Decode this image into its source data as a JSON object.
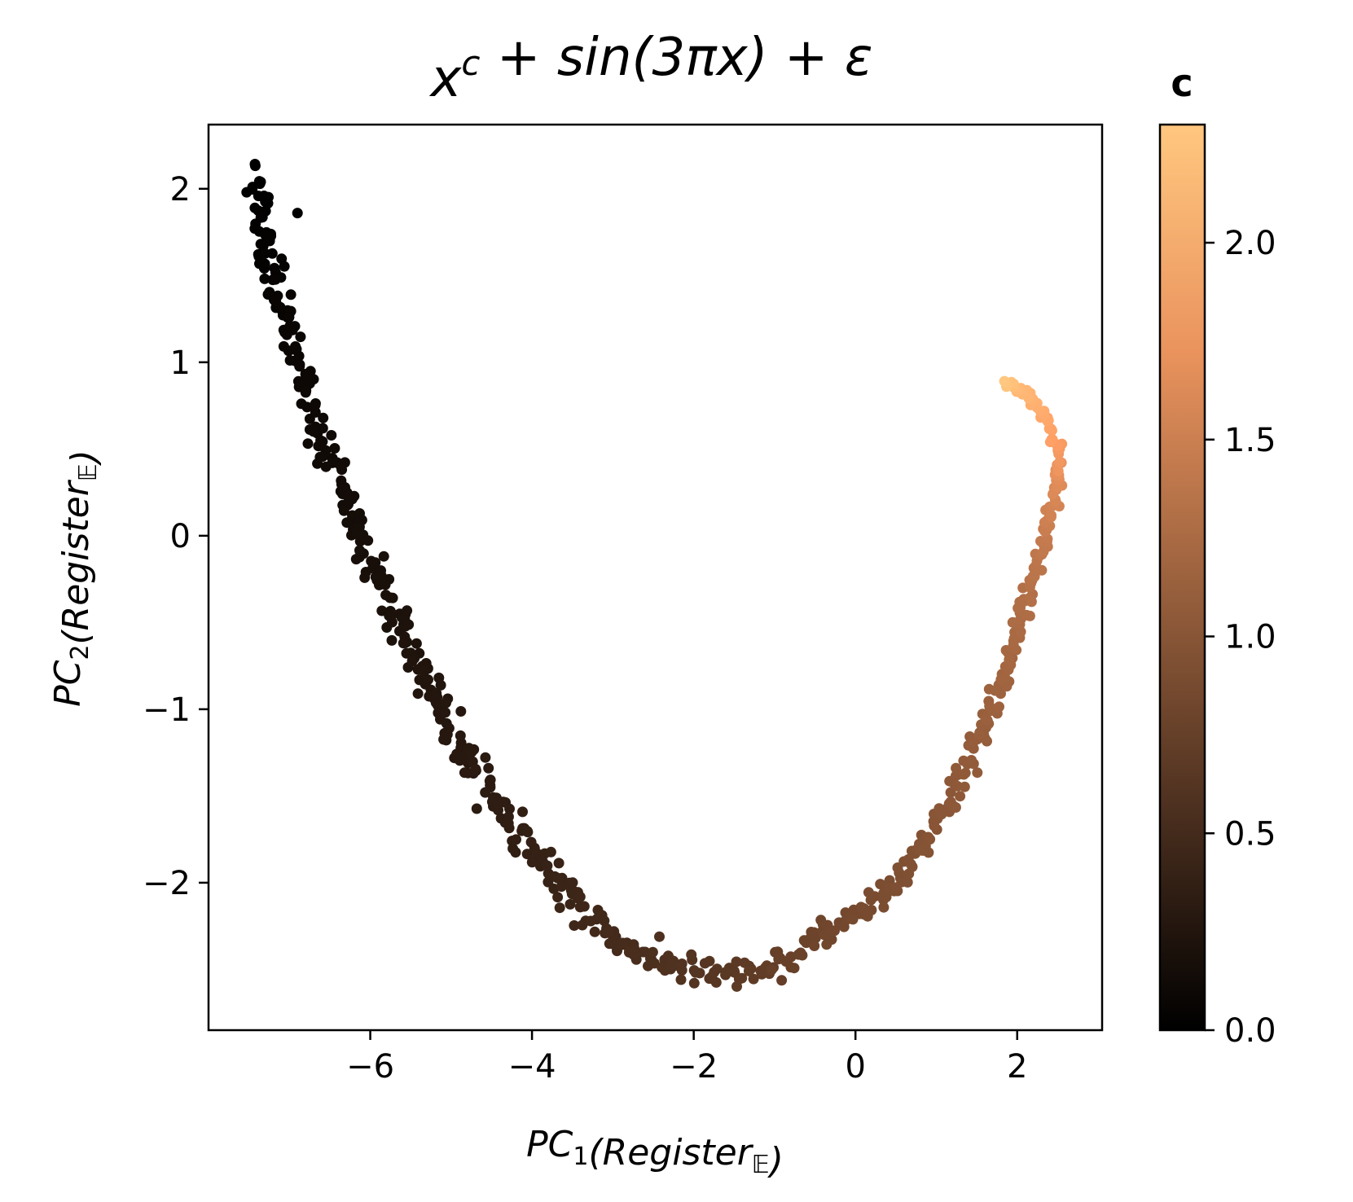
{
  "chart_data": {
    "type": "scatter",
    "title": "x^c + sin(3πx) + ε",
    "xlabel": "PC_1(Register_E)",
    "ylabel": "PC_2(Register_E)",
    "xlim": [
      -8.0,
      3.05
    ],
    "ylim": [
      -2.85,
      2.37
    ],
    "xticks": [
      -6,
      -4,
      -2,
      0,
      2
    ],
    "yticks": [
      -2,
      -1,
      0,
      1,
      2
    ],
    "xtick_labels": [
      "−6",
      "−4",
      "−2",
      "0",
      "2"
    ],
    "ytick_labels": [
      "−2",
      "−1",
      "0",
      "1",
      "2"
    ],
    "grid": false,
    "colormap": "copper",
    "colorbar": {
      "title": "c",
      "range": [
        0.0,
        2.3
      ],
      "ticks": [
        0.0,
        0.5,
        1.0,
        1.5,
        2.0
      ],
      "tick_labels": [
        "0.0",
        "0.5",
        "1.0",
        "1.5",
        "2.0"
      ]
    },
    "curve_anchors": [
      {
        "x": -7.4,
        "y": 2.08,
        "c": 0.0
      },
      {
        "x": -7.3,
        "y": 1.7,
        "c": 0.03
      },
      {
        "x": -7.0,
        "y": 1.15,
        "c": 0.07
      },
      {
        "x": -6.6,
        "y": 0.55,
        "c": 0.11
      },
      {
        "x": -6.2,
        "y": 0.1,
        "c": 0.15
      },
      {
        "x": -5.7,
        "y": -0.45,
        "c": 0.2
      },
      {
        "x": -5.2,
        "y": -0.95,
        "c": 0.25
      },
      {
        "x": -4.7,
        "y": -1.35,
        "c": 0.3
      },
      {
        "x": -4.1,
        "y": -1.75,
        "c": 0.36
      },
      {
        "x": -3.5,
        "y": -2.1,
        "c": 0.43
      },
      {
        "x": -2.9,
        "y": -2.35,
        "c": 0.5
      },
      {
        "x": -2.3,
        "y": -2.48,
        "c": 0.57
      },
      {
        "x": -1.6,
        "y": -2.55,
        "c": 0.64
      },
      {
        "x": -1.0,
        "y": -2.5,
        "c": 0.72
      },
      {
        "x": -0.4,
        "y": -2.3,
        "c": 0.8
      },
      {
        "x": 0.3,
        "y": -2.1,
        "c": 0.88
      },
      {
        "x": 0.9,
        "y": -1.75,
        "c": 0.96
      },
      {
        "x": 1.4,
        "y": -1.3,
        "c": 1.05
      },
      {
        "x": 1.8,
        "y": -0.85,
        "c": 1.15
      },
      {
        "x": 2.1,
        "y": -0.4,
        "c": 1.27
      },
      {
        "x": 2.35,
        "y": 0.0,
        "c": 1.42
      },
      {
        "x": 2.5,
        "y": 0.3,
        "c": 1.6
      },
      {
        "x": 2.52,
        "y": 0.5,
        "c": 1.78
      },
      {
        "x": 2.3,
        "y": 0.72,
        "c": 1.98
      },
      {
        "x": 2.0,
        "y": 0.86,
        "c": 2.15
      },
      {
        "x": 1.85,
        "y": 0.88,
        "c": 2.3
      }
    ],
    "outlier_points": [
      {
        "x": -6.9,
        "y": 1.86,
        "c": 0.0
      }
    ],
    "num_points": 700,
    "noise_scale": 0.055
  }
}
